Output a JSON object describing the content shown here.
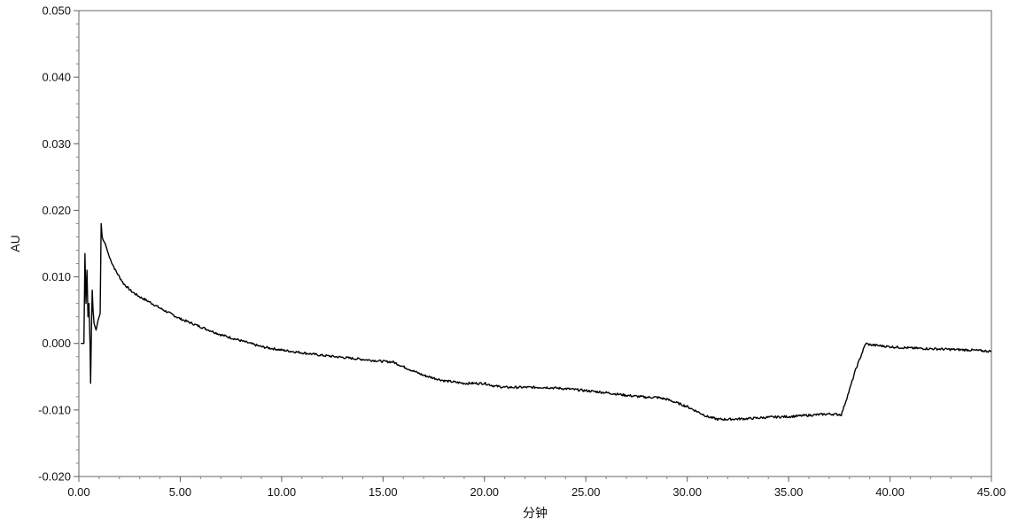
{
  "chart_data": {
    "type": "line",
    "title": "",
    "xlabel": "分钟",
    "ylabel": "AU",
    "xlim": [
      0,
      45
    ],
    "ylim": [
      -0.02,
      0.05
    ],
    "x_ticks": [
      "0.00",
      "5.00",
      "10.00",
      "15.00",
      "20.00",
      "25.00",
      "30.00",
      "35.00",
      "40.00",
      "45.00"
    ],
    "y_ticks": [
      "-0.020",
      "-0.010",
      "0.000",
      "0.010",
      "0.020",
      "0.030",
      "0.040",
      "0.050"
    ],
    "grid": false,
    "line_color": "#000000",
    "series": [
      {
        "x": [
          0.1,
          0.25,
          0.3,
          0.35,
          0.4,
          0.45,
          0.5,
          0.55,
          0.58,
          0.62,
          0.66,
          0.7,
          0.75,
          0.85,
          0.95,
          1.05,
          1.1,
          1.15,
          1.2,
          1.3,
          1.5,
          1.8,
          2.2,
          2.6,
          3.0,
          3.5,
          4.0,
          5.0,
          6.0,
          7.0,
          8.0,
          9.0,
          10.0,
          11.0,
          12.0,
          13.0,
          14.0,
          15.0,
          15.5,
          16.0,
          17.0,
          18.0,
          19.0,
          20.0,
          20.5,
          21.0,
          22.0,
          23.0,
          24.0,
          25.0,
          26.0,
          27.0,
          28.0,
          28.5,
          29.0,
          30.0,
          31.0,
          31.5,
          32.0,
          33.0,
          34.0,
          35.0,
          36.0,
          37.0,
          37.6,
          38.0,
          38.3,
          38.8,
          39.0,
          40.0,
          41.0,
          42.0,
          43.0,
          44.0,
          45.0
        ],
        "y": [
          0.0,
          0.0,
          0.0135,
          0.006,
          0.011,
          0.004,
          0.006,
          0.0,
          -0.006,
          0.002,
          0.008,
          0.005,
          0.003,
          0.002,
          0.0035,
          0.0045,
          0.018,
          0.016,
          0.0155,
          0.015,
          0.013,
          0.011,
          0.009,
          0.0078,
          0.007,
          0.0062,
          0.0053,
          0.0037,
          0.0025,
          0.0013,
          0.0004,
          -0.0005,
          -0.001,
          -0.0014,
          -0.0018,
          -0.0021,
          -0.0024,
          -0.0027,
          -0.0028,
          -0.0035,
          -0.0048,
          -0.0056,
          -0.006,
          -0.006,
          -0.0064,
          -0.0066,
          -0.0066,
          -0.0066,
          -0.0068,
          -0.0071,
          -0.0074,
          -0.0078,
          -0.0081,
          -0.0081,
          -0.0084,
          -0.0095,
          -0.011,
          -0.0114,
          -0.0114,
          -0.0113,
          -0.0111,
          -0.011,
          -0.0108,
          -0.0106,
          -0.0107,
          -0.007,
          -0.004,
          0.0,
          -0.0002,
          -0.0005,
          -0.0007,
          -0.0008,
          -0.0009,
          -0.001,
          -0.0012
        ]
      }
    ]
  }
}
